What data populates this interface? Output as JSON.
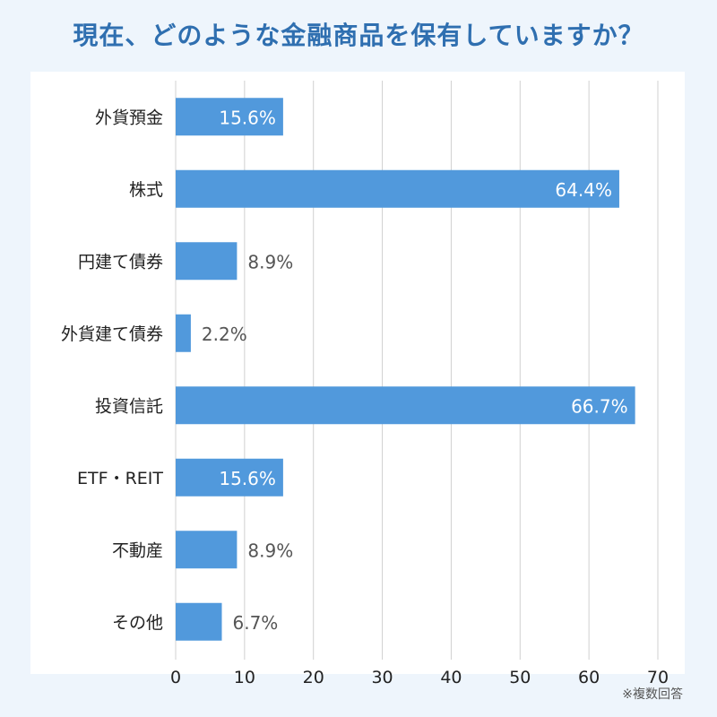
{
  "title": "現在、どのような金融商品を保有していますか？",
  "footnote": "※複数回答",
  "colors": {
    "bar": "#5199dc",
    "title": "#2f6fb0",
    "label_inside": "#ffffff",
    "label_outside": "#555555",
    "grid": "#d0d0d0",
    "axis_text": "#222222"
  },
  "chart_data": {
    "type": "bar",
    "orientation": "horizontal",
    "title": "現在、どのような金融商品を保有していますか？",
    "categories": [
      "外貨預金",
      "株式",
      "円建て債券",
      "外貨建て債券",
      "投資信託",
      "ETF・REIT",
      "不動産",
      "その他"
    ],
    "values": [
      15.6,
      64.4,
      8.9,
      2.2,
      66.7,
      15.6,
      8.9,
      6.7
    ],
    "value_labels": [
      "15.6%",
      "64.4%",
      "8.9%",
      "2.2%",
      "66.7%",
      "15.6%",
      "8.9%",
      "6.7%"
    ],
    "xlim": [
      0,
      70
    ],
    "xticks": [
      0,
      10,
      20,
      30,
      40,
      50,
      60,
      70
    ],
    "xlabel": "",
    "ylabel": "",
    "grid": true
  }
}
